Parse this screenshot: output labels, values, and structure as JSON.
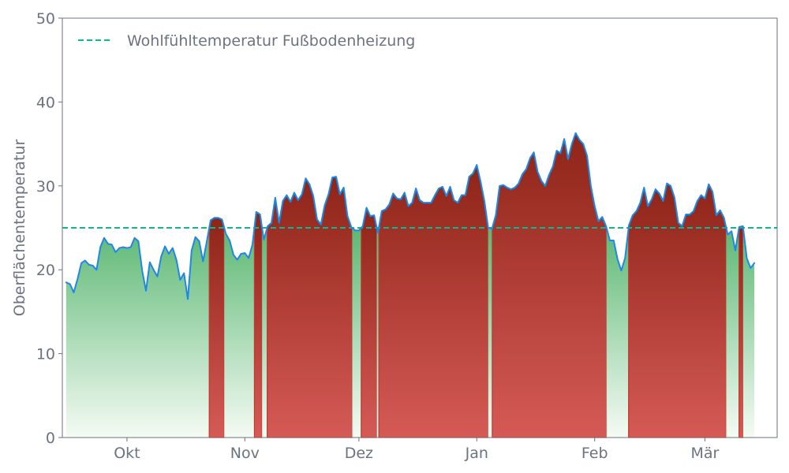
{
  "chart_data": {
    "type": "area",
    "title": "",
    "xlabel": "",
    "ylabel": "Oberflächentemperatur",
    "ylim": [
      0,
      50
    ],
    "yticks": [
      0,
      10,
      20,
      30,
      40,
      50
    ],
    "xlim": [
      "2023-09-14",
      "2024-03-20"
    ],
    "xticks": [
      {
        "date": "2023-10-01",
        "label": "Okt"
      },
      {
        "date": "2023-11-01",
        "label": "Nov"
      },
      {
        "date": "2023-12-01",
        "label": "Dez"
      },
      {
        "date": "2024-01-01",
        "label": "Jan"
      },
      {
        "date": "2024-02-01",
        "label": "Feb"
      },
      {
        "date": "2024-03-01",
        "label": "Mär"
      }
    ],
    "grid": false,
    "legend": {
      "placement": "top-left",
      "entries": [
        "Wohlfühltemperatur Fußbodenheizung"
      ]
    },
    "threshold": {
      "name": "Wohlfühltemperatur Fußbodenheizung",
      "value": 25,
      "color": "#10b981"
    },
    "colors": {
      "line": "#1e88e5",
      "below_top": "#5cb874",
      "below_bottom": "#f5fbf4",
      "above_top": "#8e2418",
      "above_bottom": "#d55a56",
      "axis": "#6b7280"
    },
    "start_date": "2023-09-15",
    "values": [
      18.5,
      18.3,
      17.3,
      18.9,
      20.8,
      21.1,
      20.6,
      20.5,
      20.0,
      22.7,
      23.8,
      23.1,
      23.0,
      22.1,
      22.6,
      22.7,
      22.6,
      22.7,
      23.8,
      23.4,
      19.9,
      17.5,
      20.9,
      20.0,
      19.2,
      21.6,
      22.8,
      21.9,
      22.6,
      21.2,
      18.8,
      19.6,
      16.5,
      22.3,
      23.9,
      23.4,
      21.0,
      23.4,
      25.9,
      26.2,
      26.2,
      26.0,
      24.3,
      23.5,
      21.8,
      21.2,
      21.9,
      22.0,
      21.4,
      23.0,
      26.9,
      26.6,
      23.6,
      25.2,
      25.6,
      28.6,
      25.6,
      28.2,
      28.9,
      28.1,
      29.2,
      28.3,
      29.0,
      30.9,
      30.2,
      28.8,
      26.0,
      25.4,
      27.7,
      29.0,
      31.0,
      31.1,
      29.0,
      29.8,
      26.4,
      25.1,
      24.7,
      24.7,
      25.2,
      27.4,
      26.4,
      26.5,
      24.4,
      27.0,
      27.2,
      27.8,
      29.1,
      28.5,
      28.4,
      29.2,
      27.6,
      28.0,
      29.7,
      28.3,
      28.0,
      28.0,
      28.0,
      28.9,
      29.7,
      29.9,
      28.8,
      29.9,
      28.3,
      28.0,
      28.9,
      28.9,
      31.1,
      31.5,
      32.5,
      30.5,
      28.2,
      25.0,
      24.9,
      26.5,
      30.0,
      30.1,
      29.8,
      29.6,
      29.8,
      30.3,
      31.4,
      32.0,
      33.3,
      34.0,
      31.7,
      30.6,
      30.0,
      31.3,
      32.3,
      34.2,
      33.9,
      35.6,
      33.2,
      35.0,
      36.3,
      35.5,
      35.0,
      33.6,
      30.0,
      27.6,
      25.8,
      26.3,
      25.2,
      23.5,
      23.5,
      21.3,
      19.9,
      21.4,
      25.3,
      26.5,
      27.0,
      28.0,
      29.8,
      27.6,
      28.4,
      29.6,
      29.1,
      28.2,
      30.3,
      30.0,
      28.6,
      25.6,
      25.2,
      26.6,
      26.6,
      27.0,
      28.2,
      28.9,
      28.5,
      30.2,
      29.3,
      26.5,
      27.1,
      26.2,
      24.2,
      24.6,
      22.3,
      25.1,
      25.2,
      21.4,
      20.2,
      20.8
    ]
  }
}
